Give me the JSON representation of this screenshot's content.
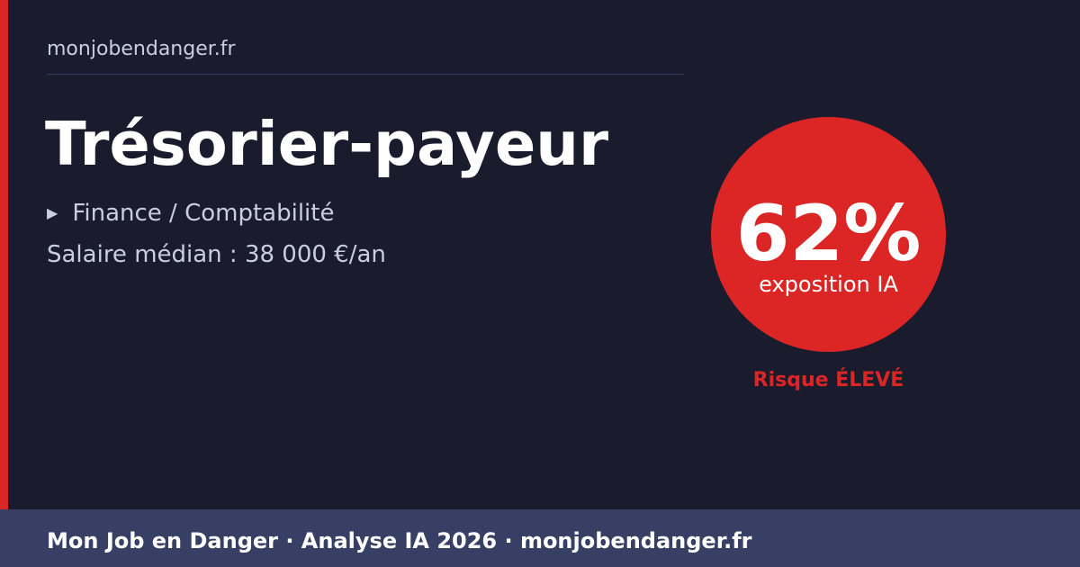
{
  "site": "monjobendanger.fr",
  "job": {
    "title": "Trésorier-payeur",
    "category_icon": "triangle-right-icon",
    "category": "Finance / Comptabilité",
    "salary": "Salaire médian : 38 000 €/an"
  },
  "exposure": {
    "percent": 62,
    "percent_label": "62%",
    "label": "exposition IA",
    "risk": "Risque ÉLEVÉ"
  },
  "colors": {
    "accent": "#dc2626",
    "background": "#1b1b2e",
    "footer": "#374064"
  },
  "footer": {
    "text": "Mon Job en Danger · Analyse IA 2026 · monjobendanger.fr"
  }
}
